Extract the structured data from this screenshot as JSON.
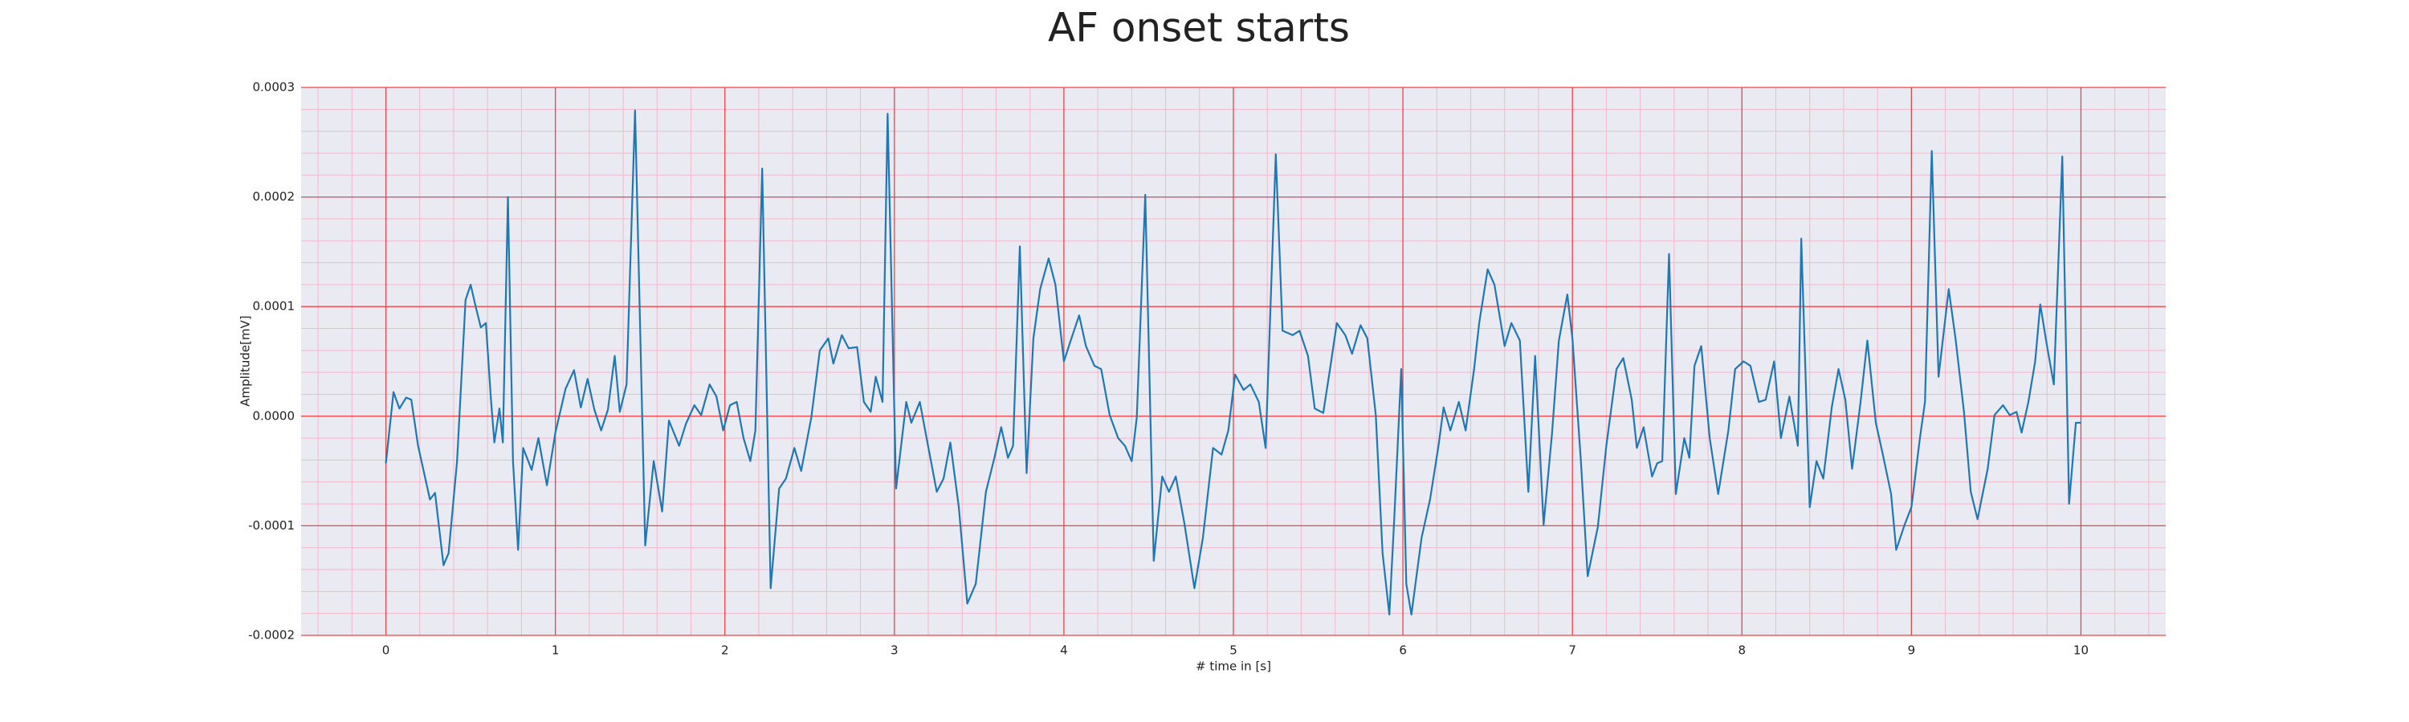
{
  "chart_data": {
    "type": "line",
    "title": "AF onset starts",
    "x_label": "# time in [s]",
    "y_label": "Amplitude[mV]",
    "color": "#1f77b4",
    "grid": true,
    "xlim": [
      -0.5,
      10.5
    ],
    "ylim": [
      -0.0002,
      0.0003
    ],
    "xticks": [
      0,
      1,
      2,
      3,
      4,
      5,
      6,
      7,
      8,
      9,
      10
    ],
    "yticks": [
      -0.0002,
      -0.0001,
      {
        "value": 0,
        "label": "0.0000"
      },
      0.0001,
      0.0002,
      0.0003
    ],
    "x": [
      0,
      0.045,
      0.08,
      0.12,
      0.15,
      0.19,
      0.26,
      0.29,
      0.34,
      0.37,
      0.42,
      0.47,
      0.5,
      0.53,
      0.56,
      0.59,
      0.62,
      0.64,
      0.67,
      0.69,
      0.72,
      0.75,
      0.78,
      0.81,
      0.86,
      0.9,
      0.95,
      1.0,
      1.06,
      1.11,
      1.15,
      1.19,
      1.23,
      1.27,
      1.31,
      1.35,
      1.38,
      1.42,
      1.47,
      1.53,
      1.58,
      1.63,
      1.67,
      1.73,
      1.77,
      1.82,
      1.86,
      1.91,
      1.95,
      1.99,
      2.03,
      2.07,
      2.11,
      2.15,
      2.18,
      2.22,
      2.27,
      2.32,
      2.36,
      2.41,
      2.45,
      2.51,
      2.56,
      2.61,
      2.64,
      2.69,
      2.73,
      2.78,
      2.82,
      2.86,
      2.89,
      2.93,
      2.96,
      3.01,
      3.07,
      3.1,
      3.15,
      3.19,
      3.25,
      3.29,
      3.33,
      3.38,
      3.43,
      3.48,
      3.54,
      3.59,
      3.63,
      3.67,
      3.7,
      3.74,
      3.78,
      3.82,
      3.86,
      3.91,
      3.95,
      4.0,
      4.04,
      4.09,
      4.13,
      4.18,
      4.22,
      4.27,
      4.32,
      4.36,
      4.4,
      4.43,
      4.48,
      4.53,
      4.58,
      4.62,
      4.66,
      4.71,
      4.77,
      4.82,
      4.88,
      4.93,
      4.97,
      5.01,
      5.06,
      5.1,
      5.15,
      5.19,
      5.25,
      5.29,
      5.35,
      5.39,
      5.44,
      5.48,
      5.53,
      5.57,
      5.61,
      5.66,
      5.7,
      5.75,
      5.79,
      5.84,
      5.88,
      5.92,
      5.95,
      5.99,
      6.02,
      6.05,
      6.11,
      6.16,
      6.21,
      6.24,
      6.28,
      6.33,
      6.37,
      6.42,
      6.45,
      6.5,
      6.54,
      6.6,
      6.64,
      6.69,
      6.74,
      6.78,
      6.83,
      6.88,
      6.92,
      6.97,
      7.0,
      7.05,
      7.09,
      7.15,
      7.2,
      7.26,
      7.3,
      7.35,
      7.38,
      7.42,
      7.47,
      7.5,
      7.53,
      7.57,
      7.61,
      7.66,
      7.69,
      7.72,
      7.76,
      7.81,
      7.86,
      7.92,
      7.96,
      8.01,
      8.05,
      8.1,
      8.14,
      8.19,
      8.23,
      8.28,
      8.33,
      8.35,
      8.4,
      8.44,
      8.48,
      8.53,
      8.57,
      8.61,
      8.65,
      8.7,
      8.74,
      8.79,
      8.83,
      8.88,
      8.91,
      8.96,
      9.0,
      9.05,
      9.08,
      9.12,
      9.16,
      9.22,
      9.26,
      9.31,
      9.35,
      9.39,
      9.45,
      9.49,
      9.54,
      9.58,
      9.62,
      9.65,
      9.69,
      9.73,
      9.76,
      9.8,
      9.84,
      9.89,
      9.93,
      9.97,
      10.0
    ],
    "values": [
      -4.3e-05,
      2.2e-05,
      7e-06,
      1.7e-05,
      1.5e-05,
      -2.7e-05,
      -7.6e-05,
      -7e-05,
      -0.000136,
      -0.000125,
      -4.1e-05,
      0.000106,
      0.00012,
      0.0001,
      8.1e-05,
      8.5e-05,
      1.5e-05,
      -2.4e-05,
      7e-06,
      -2.4e-05,
      0.0002,
      -4.1e-05,
      -0.000122,
      -2.9e-05,
      -4.9e-05,
      -2e-05,
      -6.3e-05,
      -1.5e-05,
      2.5e-05,
      4.2e-05,
      8e-06,
      3.4e-05,
      6e-06,
      -1.3e-05,
      6e-06,
      5.5e-05,
      4e-06,
      2.9e-05,
      0.000279,
      -0.000118,
      -4.1e-05,
      -8.7e-05,
      -4e-06,
      -2.7e-05,
      -7e-06,
      1e-05,
      1e-06,
      2.9e-05,
      1.8e-05,
      -1.3e-05,
      1e-05,
      1.3e-05,
      -2e-05,
      -4.1e-05,
      -1.3e-05,
      0.000226,
      -0.000157,
      -6.6e-05,
      -5.7e-05,
      -2.9e-05,
      -5e-05,
      -1e-06,
      6e-05,
      7.1e-05,
      4.8e-05,
      7.4e-05,
      6.2e-05,
      6.3e-05,
      1.3e-05,
      4e-06,
      3.6e-05,
      1.3e-05,
      0.000276,
      -6.6e-05,
      1.3e-05,
      -6e-06,
      1.3e-05,
      -2e-05,
      -6.9e-05,
      -5.7e-05,
      -2.4e-05,
      -8.3e-05,
      -0.000171,
      -0.000153,
      -6.9e-05,
      -3.8e-05,
      -1e-05,
      -3.8e-05,
      -2.7e-05,
      0.000155,
      -5.2e-05,
      7.1e-05,
      0.000116,
      0.000144,
      0.00012,
      5e-05,
      6.9e-05,
      9.2e-05,
      6.4e-05,
      4.6e-05,
      4.3e-05,
      1e-06,
      -2e-05,
      -2.7e-05,
      -4.1e-05,
      -1e-06,
      0.000202,
      -0.000132,
      -5.5e-05,
      -6.9e-05,
      -5.5e-05,
      -9.7e-05,
      -0.000157,
      -0.000111,
      -2.9e-05,
      -3.5e-05,
      -1.3e-05,
      3.8e-05,
      2.4e-05,
      2.9e-05,
      1.3e-05,
      -2.9e-05,
      0.000239,
      7.8e-05,
      7.4e-05,
      7.8e-05,
      5.5e-05,
      7e-06,
      3e-06,
      4.3e-05,
      8.5e-05,
      7.4e-05,
      5.7e-05,
      8.3e-05,
      7.1e-05,
      1e-06,
      -0.000125,
      -0.000181,
      -9e-05,
      4.3e-05,
      -0.000153,
      -0.000181,
      -0.000111,
      -7.6e-05,
      -2.7e-05,
      8e-06,
      -1.3e-05,
      1.3e-05,
      -1.3e-05,
      4.3e-05,
      8.5e-05,
      0.000134,
      0.00012,
      6.4e-05,
      8.5e-05,
      6.9e-05,
      -6.9e-05,
      5.5e-05,
      -9.9e-05,
      -1.5e-05,
      6.9e-05,
      0.000111,
      7.1e-05,
      -4.1e-05,
      -0.000146,
      -0.000101,
      -2.7e-05,
      4.3e-05,
      5.3e-05,
      1.5e-05,
      -2.9e-05,
      -1e-05,
      -5.5e-05,
      -4.3e-05,
      -4.1e-05,
      0.000148,
      -7.1e-05,
      -2e-05,
      -3.8e-05,
      4.6e-05,
      6.4e-05,
      -2e-05,
      -7.1e-05,
      -1.3e-05,
      4.3e-05,
      5e-05,
      4.6e-05,
      1.3e-05,
      1.5e-05,
      5e-05,
      -2e-05,
      1.8e-05,
      -2.7e-05,
      0.000162,
      -8.3e-05,
      -4.1e-05,
      -5.7e-05,
      8e-06,
      4.3e-05,
      1.5e-05,
      -4.8e-05,
      1.3e-05,
      6.9e-05,
      -6e-06,
      -3.4e-05,
      -7.1e-05,
      -0.000122,
      -9.9e-05,
      -8.3e-05,
      -2e-05,
      1.3e-05,
      0.000242,
      3.6e-05,
      0.000116,
      7.1e-05,
      4e-06,
      -6.9e-05,
      -9.4e-05,
      -4.8e-05,
      1e-06,
      1e-05,
      1e-06,
      4e-06,
      -1.5e-05,
      1.3e-05,
      5e-05,
      0.000102,
      6.4e-05,
      2.9e-05,
      0.000237,
      -8e-05,
      -6e-06,
      -6e-06
    ]
  }
}
